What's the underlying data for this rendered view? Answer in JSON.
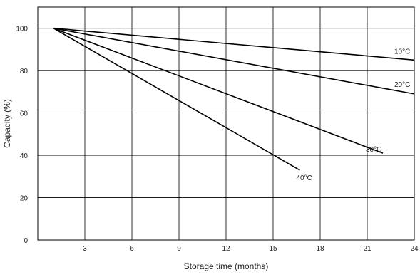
{
  "chart_data": {
    "type": "line",
    "title": "",
    "xlabel": "Storage time (months)",
    "ylabel": "Capacity (%)",
    "xlim": [
      0,
      24
    ],
    "ylim": [
      0,
      110
    ],
    "xticks": [
      3,
      6,
      9,
      12,
      15,
      18,
      21,
      24
    ],
    "yticks": [
      0,
      20,
      40,
      60,
      80,
      100
    ],
    "grid": true,
    "legend": "none",
    "series": [
      {
        "name": "10°C",
        "x": [
          1,
          24
        ],
        "y": [
          100,
          85
        ]
      },
      {
        "name": "20°C",
        "x": [
          1,
          24
        ],
        "y": [
          100,
          69
        ]
      },
      {
        "name": "30°C",
        "x": [
          1,
          22
        ],
        "y": [
          100,
          41
        ]
      },
      {
        "name": "40°C",
        "x": [
          1,
          16.7
        ],
        "y": [
          100,
          33
        ]
      }
    ]
  }
}
